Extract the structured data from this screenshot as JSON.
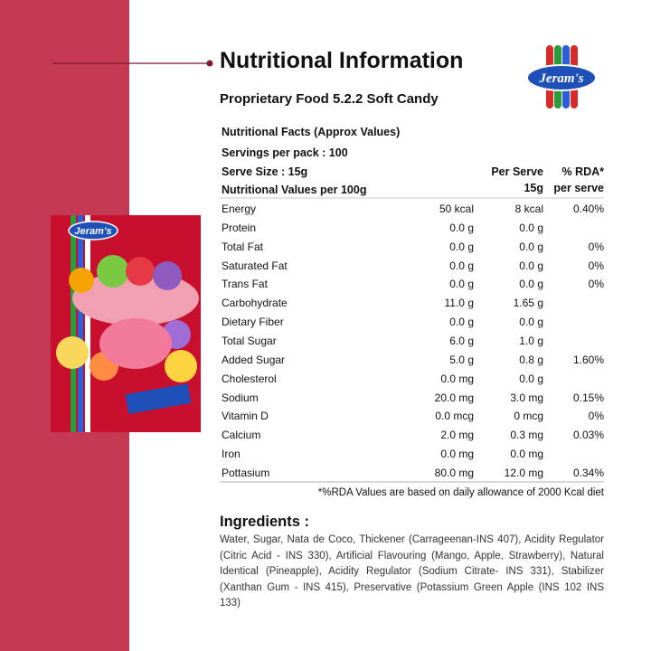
{
  "header": {
    "title": "Nutritional Information",
    "subtitle": "Proprietary Food 5.2.2 Soft Candy",
    "logo": "Jeram's"
  },
  "package": {
    "brand": "Jeram's"
  },
  "facts": {
    "heading": "Nutritional  Facts (Approx Values)",
    "servings": "Servings  per pack : 100",
    "serve_size": "Serve Size : 15g",
    "per100": "Nutritional  Values per 100g",
    "col_serve": [
      "Per Serve",
      "15g"
    ],
    "col_rda": [
      "% RDA*",
      "per serve"
    ],
    "rows": [
      [
        "Energy",
        "50 kcal",
        "8 kcal",
        "0.40%"
      ],
      [
        "Protein",
        "0.0 g",
        "0.0 g",
        null
      ],
      [
        "Total  Fat",
        "0.0 g",
        "0.0 g",
        "0%"
      ],
      [
        "Saturated  Fat",
        "0.0 g",
        "0.0 g",
        "0%"
      ],
      [
        "Trans  Fat",
        "0.0 g",
        "0.0 g",
        "0%"
      ],
      [
        "Carbohydrate",
        "11.0 g",
        "1.65 g",
        null
      ],
      [
        "Dietary  Fiber",
        "0.0 g",
        "0.0 g",
        null
      ],
      [
        "Total Sugar",
        "6.0 g",
        "1.0 g",
        null
      ],
      [
        "Added Sugar",
        "5.0 g",
        "0.8 g",
        "1.60%"
      ],
      [
        "Cholesterol",
        "0.0 mg",
        "0.0 g",
        null
      ],
      [
        "Sodium",
        "20.0 mg",
        "3.0 mg",
        "0.15%"
      ],
      [
        "Vitamin D",
        "0.0 mcg",
        "0 mcg",
        "0%"
      ],
      [
        "Calcium",
        "2.0 mg",
        "0.3 mg",
        "0.03%"
      ],
      [
        "Iron",
        "0.0 mg",
        "0.0 mg",
        null
      ],
      [
        "Pottasium",
        "80.0 mg",
        "12.0 mg",
        "0.34%"
      ]
    ],
    "footnote": "*%RDA Values are based on daily allowance of 2000 Kcal diet"
  },
  "ingredients": {
    "title": "Ingredients :",
    "text": "Water, Sugar, Nata de Coco, Thickener (Carrageenan-INS 407), Acidity Regulator (Citric Acid - INS 330), Artificial Flavouring (Mango, Apple, Strawberry), Natural Identical (Pineapple), Acidity Regulator (Sodium Citrate- INS 331), Stabilizer (Xanthan Gum - INS 415), Preservative (Potassium Green Apple (INS 102 INS 133)"
  }
}
